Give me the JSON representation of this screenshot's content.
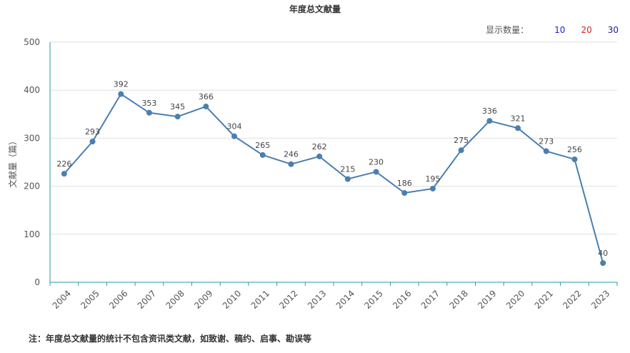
{
  "title": "年度总文献量",
  "count_selector": {
    "label": "显示数量：",
    "options": [
      {
        "label": "10",
        "color": "#1a1adb"
      },
      {
        "label": "20",
        "color": "#e02020"
      },
      {
        "label": "30",
        "color": "#1a1a9b"
      }
    ]
  },
  "note": "注：年度总文献量的统计不包含资讯类文献，如致谢、稿约、启事、勘误等",
  "chart_data": {
    "type": "line",
    "title": "年度总文献量",
    "xlabel": "",
    "ylabel": "文献量（篇）",
    "categories": [
      "2004",
      "2005",
      "2006",
      "2007",
      "2008",
      "2009",
      "2010",
      "2011",
      "2012",
      "2013",
      "2014",
      "2015",
      "2016",
      "2017",
      "2018",
      "2019",
      "2020",
      "2021",
      "2022",
      "2023"
    ],
    "values": [
      226,
      293,
      392,
      353,
      345,
      366,
      304,
      265,
      246,
      262,
      215,
      230,
      186,
      195,
      275,
      336,
      321,
      273,
      256,
      40
    ],
    "ylim": [
      0,
      500
    ],
    "yticks": [
      0,
      100,
      200,
      300,
      400,
      500
    ],
    "grid": true,
    "line_color": "#4a7fb0",
    "axis_color": "#2a9aa8"
  }
}
